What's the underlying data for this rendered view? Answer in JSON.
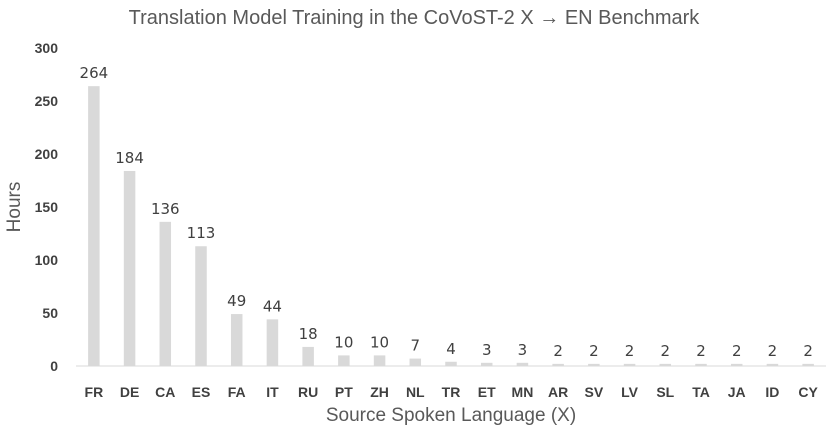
{
  "chart_data": {
    "type": "bar",
    "title": "Translation Model Training in the CoVoST-2 X → EN Benchmark",
    "xlabel": "Source Spoken Language (X)",
    "ylabel": "Hours",
    "categories": [
      "FR",
      "DE",
      "CA",
      "ES",
      "FA",
      "IT",
      "RU",
      "PT",
      "ZH",
      "NL",
      "TR",
      "ET",
      "MN",
      "AR",
      "SV",
      "LV",
      "SL",
      "TA",
      "JA",
      "ID",
      "CY"
    ],
    "values": [
      264,
      184,
      136,
      113,
      49,
      44,
      18,
      10,
      10,
      7,
      4,
      3,
      3,
      2,
      2,
      2,
      2,
      2,
      2,
      2,
      2
    ],
    "ylim": [
      0,
      300
    ],
    "yticks": [
      0,
      50,
      100,
      150,
      200,
      250,
      300
    ],
    "data_labels": true,
    "grid": false,
    "legend": "none",
    "bar_color": "#d9d9d9"
  }
}
